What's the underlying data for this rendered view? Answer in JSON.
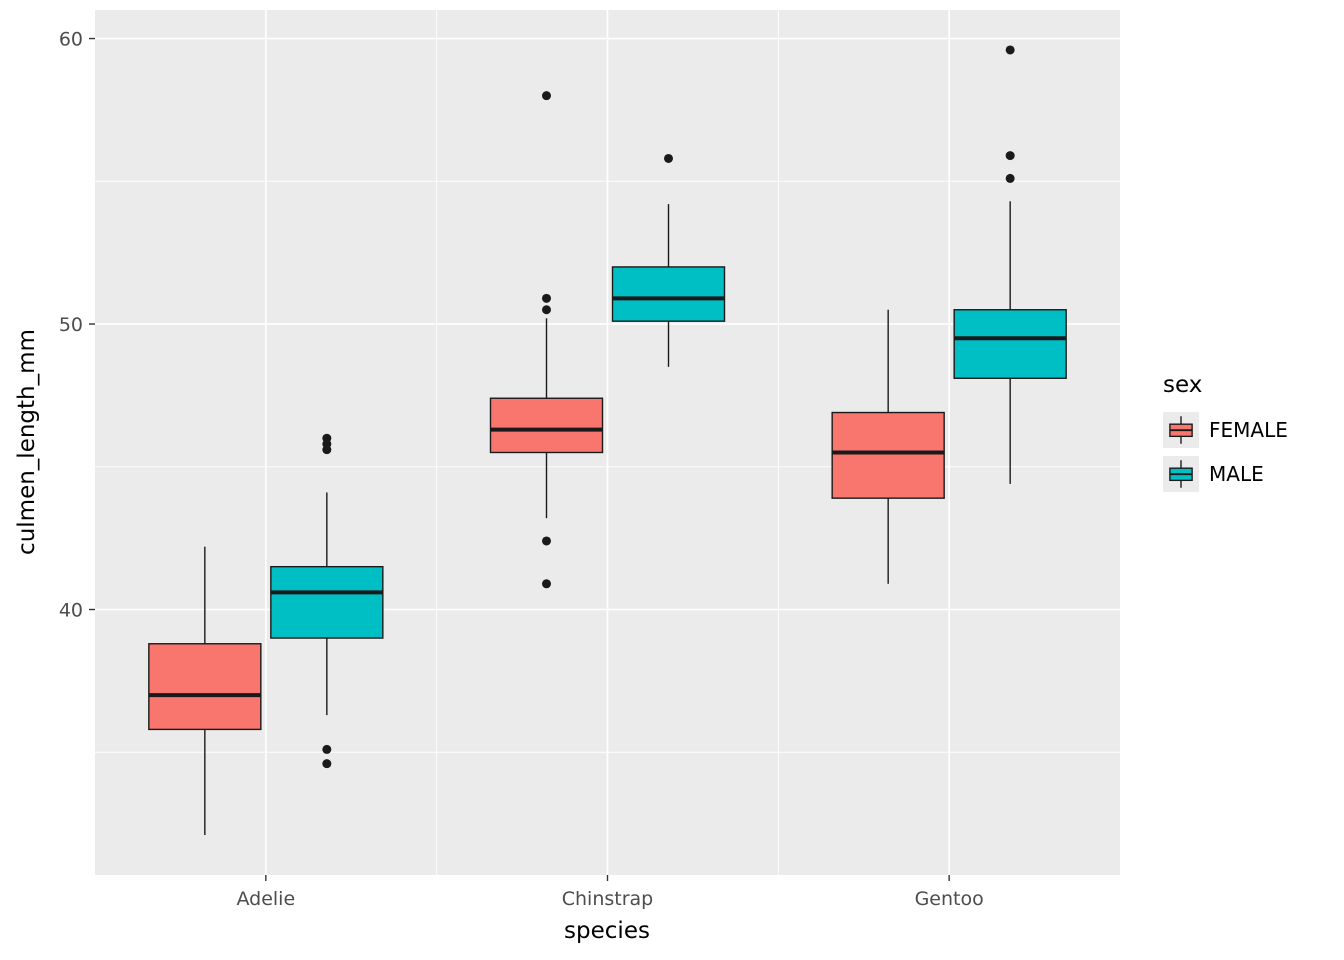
{
  "figure": {
    "background": "#FFFFFF",
    "panel_background": "#EBEBEB",
    "grid_color": "#FFFFFF",
    "box_outline_color": "#1A1A1A",
    "tick_label_color": "#4D4D4D"
  },
  "axes": {
    "x_title": "species",
    "y_title": "culmen_length_mm",
    "y_ticks": [
      "40",
      "50",
      "60"
    ],
    "y_tick_values": [
      40,
      50,
      60
    ],
    "y_minor_values": [
      35,
      45,
      55
    ],
    "categories": [
      "Adelie",
      "Chinstrap",
      "Gentoo"
    ]
  },
  "legend": {
    "title": "sex",
    "entries": [
      {
        "label": "FEMALE",
        "color": "#F8766D"
      },
      {
        "label": "MALE",
        "color": "#00BFC4"
      }
    ]
  },
  "chart_data": {
    "type": "boxplot",
    "title": "",
    "xlabel": "species",
    "ylabel": "culmen_length_mm",
    "ylim": [
      30.7,
      61.0
    ],
    "grid": true,
    "legend_position": "right",
    "categories": [
      "Adelie",
      "Chinstrap",
      "Gentoo"
    ],
    "series": [
      {
        "name": "FEMALE",
        "color": "#F8766D",
        "boxes": [
          {
            "category": "Adelie",
            "whisker_low": 32.1,
            "q1": 35.8,
            "median": 37.0,
            "q3": 38.8,
            "whisker_high": 42.2,
            "outliers": []
          },
          {
            "category": "Chinstrap",
            "whisker_low": 43.2,
            "q1": 45.5,
            "median": 46.3,
            "q3": 47.4,
            "whisker_high": 50.2,
            "outliers": [
              40.9,
              42.4,
              50.5,
              50.9,
              58.0
            ]
          },
          {
            "category": "Gentoo",
            "whisker_low": 40.9,
            "q1": 43.9,
            "median": 45.5,
            "q3": 46.9,
            "whisker_high": 50.5,
            "outliers": []
          }
        ]
      },
      {
        "name": "MALE",
        "color": "#00BFC4",
        "boxes": [
          {
            "category": "Adelie",
            "whisker_low": 36.3,
            "q1": 39.0,
            "median": 40.6,
            "q3": 41.5,
            "whisker_high": 44.1,
            "outliers": [
              34.6,
              35.1,
              45.6,
              45.8,
              46.0
            ]
          },
          {
            "category": "Chinstrap",
            "whisker_low": 48.5,
            "q1": 50.1,
            "median": 50.9,
            "q3": 52.0,
            "whisker_high": 54.2,
            "outliers": [
              55.8
            ]
          },
          {
            "category": "Gentoo",
            "whisker_low": 44.4,
            "q1": 48.1,
            "median": 49.5,
            "q3": 50.5,
            "whisker_high": 54.3,
            "outliers": [
              55.1,
              55.9,
              59.6
            ]
          }
        ]
      }
    ]
  }
}
